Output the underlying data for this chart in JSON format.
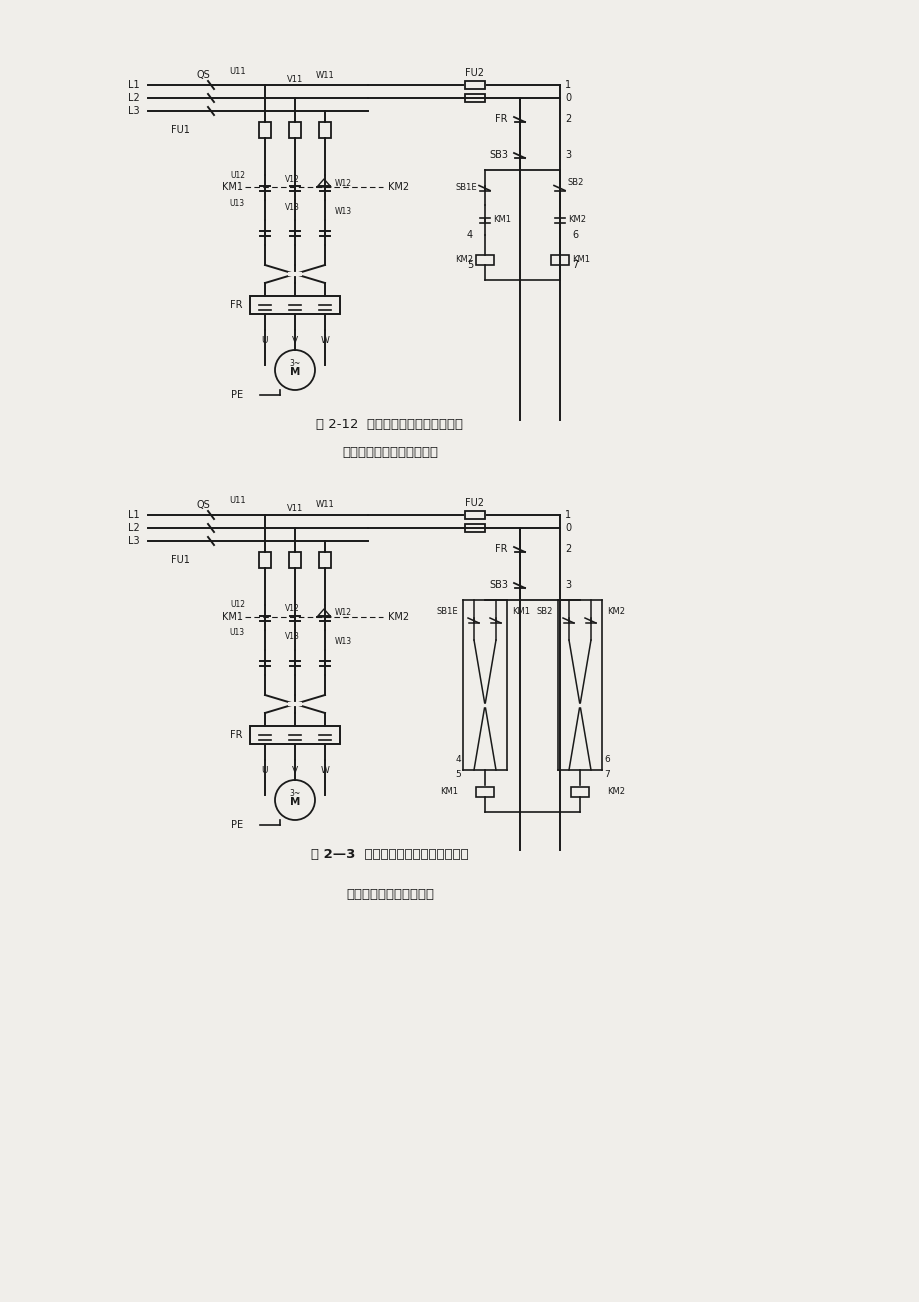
{
  "background_color": "#f0eeea",
  "page_width": 9.2,
  "page_height": 13.02,
  "fig1_caption": "图 2-12  按鈕联锁正反转控制电路图",
  "fig1_subtitle": "接触器联锁正反转控制线路",
  "fig2_caption": "图 2—3  按鈕联锁的正反转控制电路图",
  "fig2_subtitle": "双重联锁正反转控制线路",
  "line_color": "#1a1a1a",
  "text_color": "#1a1a1a"
}
